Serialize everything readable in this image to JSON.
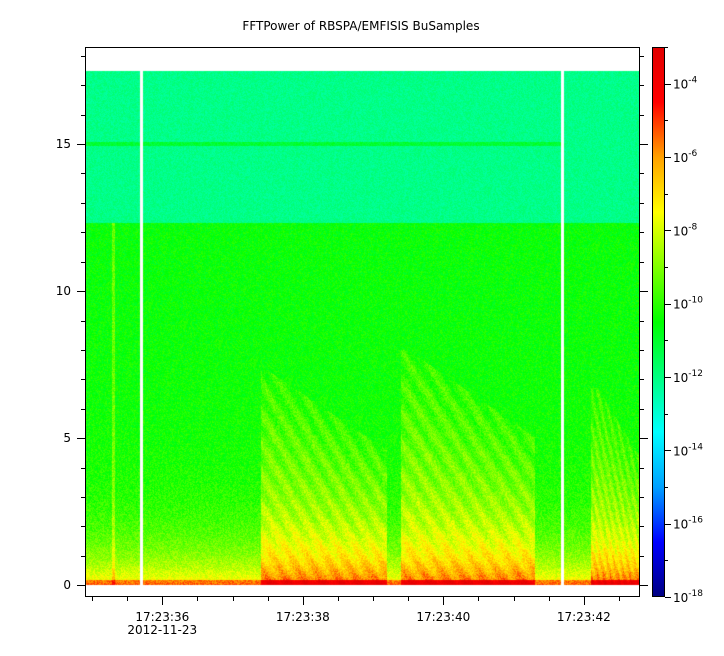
{
  "chart_data": {
    "type": "heatmap",
    "title": "FFTPower of RBSPA/EMFISIS  BuSamples",
    "xlabel": "",
    "ylabel": "",
    "x_range": [
      "17:23:34.9",
      "17:23:42.8"
    ],
    "x_ticks": [
      "17:23:36",
      "17:23:38",
      "17:23:40",
      "17:23:42"
    ],
    "x_date_label": "2012-11-23",
    "y_range": [
      -0.4,
      18.3
    ],
    "y_ticks": [
      0,
      5,
      10,
      15
    ],
    "y_data_extent": [
      0,
      17.5
    ],
    "data_gaps": [
      "17:23:35.7",
      "17:23:41.7"
    ],
    "colorbar": {
      "scale": "log",
      "range": [
        1e-18,
        0.001
      ],
      "ticks": [
        {
          "base": "10",
          "exp": "-4",
          "value": 0.0001
        },
        {
          "base": "10",
          "exp": "-6",
          "value": 1e-06
        },
        {
          "base": "10",
          "exp": "-8",
          "value": 1e-08
        },
        {
          "base": "10",
          "exp": "-10",
          "value": 1e-10
        },
        {
          "base": "10",
          "exp": "-12",
          "value": 1e-12
        },
        {
          "base": "10",
          "exp": "-14",
          "value": 1e-14
        },
        {
          "base": "10",
          "exp": "-16",
          "value": 1e-16
        },
        {
          "base": "10",
          "exp": "-18",
          "value": 1e-18
        }
      ],
      "colors": [
        "#000080",
        "#0000ff",
        "#00a0ff",
        "#00ffff",
        "#00ff80",
        "#00ff00",
        "#80ff00",
        "#ffff00",
        "#ffa000",
        "#ff0000",
        "#e00000"
      ]
    },
    "features": {
      "horizontal_line_freq": 15,
      "noise_band_upper": [
        12.3,
        17.5
      ],
      "chorus_bursts": [
        {
          "start": "17:23:37.5",
          "end": "17:23:39.1",
          "fmax": 7.3
        },
        {
          "start": "17:23:39.5",
          "end": "17:23:41.2",
          "fmax": 8.0
        },
        {
          "start": "17:23:42.2",
          "end": "17:23:42.8",
          "fmax": 6.7
        }
      ]
    }
  }
}
